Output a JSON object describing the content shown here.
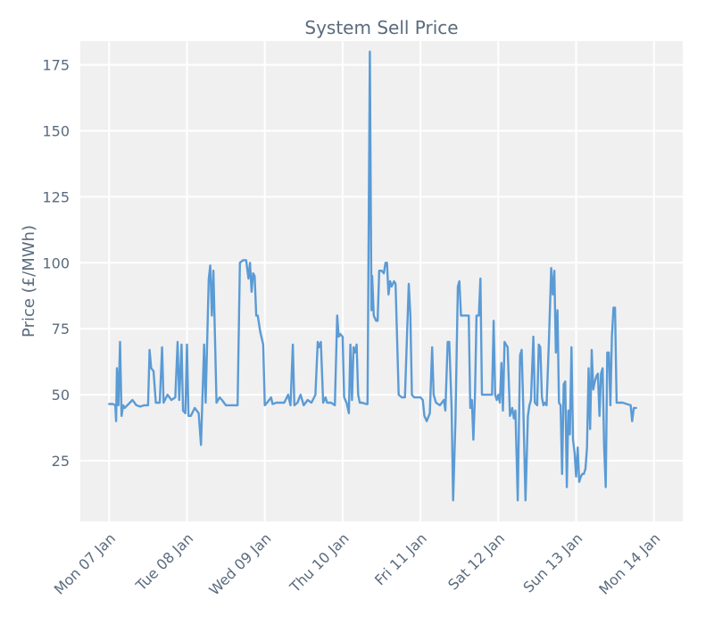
{
  "chart_data": {
    "type": "line",
    "title": "System Sell Price",
    "xlabel": "",
    "ylabel": "Price (£/MWh)",
    "x_ticks": [
      "Mon 07 Jan",
      "Tue 08 Jan",
      "Wed 09 Jan",
      "Thu 10 Jan",
      "Fri 11 Jan",
      "Sat 12 Jan",
      "Sun 13 Jan",
      "Mon 14 Jan"
    ],
    "y_ticks": [
      25,
      50,
      75,
      100,
      125,
      150,
      175
    ],
    "xlim_days": [
      -0.37,
      7.37
    ],
    "ylim": [
      2,
      184
    ],
    "grid": true,
    "colors": {
      "line": "#5b9bd5",
      "plot_bg": "#f0f0f0",
      "grid": "#ffffff",
      "text": "#5a6b7e"
    },
    "series": [
      {
        "name": "System Sell Price",
        "points": [
          [
            0.0,
            46.5
          ],
          [
            0.05,
            46.5
          ],
          [
            0.08,
            46
          ],
          [
            0.09,
            40
          ],
          [
            0.1,
            60
          ],
          [
            0.12,
            46
          ],
          [
            0.14,
            70
          ],
          [
            0.16,
            42
          ],
          [
            0.18,
            46
          ],
          [
            0.2,
            45
          ],
          [
            0.25,
            46.5
          ],
          [
            0.3,
            48
          ],
          [
            0.35,
            46
          ],
          [
            0.4,
            45.5
          ],
          [
            0.45,
            46
          ],
          [
            0.5,
            46
          ],
          [
            0.52,
            67
          ],
          [
            0.54,
            60
          ],
          [
            0.57,
            59
          ],
          [
            0.6,
            47
          ],
          [
            0.65,
            47
          ],
          [
            0.68,
            68
          ],
          [
            0.7,
            47
          ],
          [
            0.75,
            50
          ],
          [
            0.8,
            48
          ],
          [
            0.85,
            49
          ],
          [
            0.88,
            70
          ],
          [
            0.9,
            48
          ],
          [
            0.93,
            69
          ],
          [
            0.95,
            44
          ],
          [
            0.98,
            43
          ],
          [
            1.0,
            69
          ],
          [
            1.02,
            42
          ],
          [
            1.05,
            42
          ],
          [
            1.1,
            45
          ],
          [
            1.15,
            43
          ],
          [
            1.18,
            31
          ],
          [
            1.22,
            69
          ],
          [
            1.24,
            47
          ],
          [
            1.28,
            94
          ],
          [
            1.3,
            99
          ],
          [
            1.32,
            80
          ],
          [
            1.34,
            97
          ],
          [
            1.38,
            47
          ],
          [
            1.42,
            49
          ],
          [
            1.45,
            48
          ],
          [
            1.5,
            46
          ],
          [
            1.55,
            46
          ],
          [
            1.6,
            46
          ],
          [
            1.65,
            46
          ],
          [
            1.68,
            100
          ],
          [
            1.72,
            101
          ],
          [
            1.76,
            101
          ],
          [
            1.79,
            94
          ],
          [
            1.81,
            100
          ],
          [
            1.83,
            89
          ],
          [
            1.85,
            96
          ],
          [
            1.87,
            95
          ],
          [
            1.89,
            80
          ],
          [
            1.91,
            80
          ],
          [
            1.94,
            74
          ],
          [
            1.98,
            69
          ],
          [
            2.0,
            46
          ],
          [
            2.03,
            47
          ],
          [
            2.08,
            49
          ],
          [
            2.1,
            46.5
          ],
          [
            2.15,
            47
          ],
          [
            2.2,
            47
          ],
          [
            2.25,
            47
          ],
          [
            2.3,
            50
          ],
          [
            2.33,
            46
          ],
          [
            2.36,
            69
          ],
          [
            2.38,
            46
          ],
          [
            2.42,
            47
          ],
          [
            2.46,
            50
          ],
          [
            2.5,
            46
          ],
          [
            2.55,
            48
          ],
          [
            2.6,
            47
          ],
          [
            2.65,
            50
          ],
          [
            2.68,
            70
          ],
          [
            2.7,
            68
          ],
          [
            2.72,
            70
          ],
          [
            2.75,
            47
          ],
          [
            2.78,
            49
          ],
          [
            2.8,
            47
          ],
          [
            2.85,
            47
          ],
          [
            2.9,
            46
          ],
          [
            2.93,
            80
          ],
          [
            2.95,
            72
          ],
          [
            2.97,
            73
          ],
          [
            3.0,
            72
          ],
          [
            3.02,
            49
          ],
          [
            3.05,
            47
          ],
          [
            3.08,
            43
          ],
          [
            3.1,
            69
          ],
          [
            3.12,
            48
          ],
          [
            3.14,
            68
          ],
          [
            3.16,
            66
          ],
          [
            3.18,
            69
          ],
          [
            3.2,
            50
          ],
          [
            3.22,
            47
          ],
          [
            3.25,
            47
          ],
          [
            3.3,
            46.5
          ],
          [
            3.32,
            46.5
          ],
          [
            3.35,
            180
          ],
          [
            3.37,
            82
          ],
          [
            3.38,
            95
          ],
          [
            3.4,
            80
          ],
          [
            3.43,
            78
          ],
          [
            3.45,
            78
          ],
          [
            3.47,
            97
          ],
          [
            3.5,
            97
          ],
          [
            3.53,
            96
          ],
          [
            3.55,
            100
          ],
          [
            3.57,
            100
          ],
          [
            3.59,
            88
          ],
          [
            3.61,
            93
          ],
          [
            3.63,
            91
          ],
          [
            3.66,
            93
          ],
          [
            3.68,
            92
          ],
          [
            3.72,
            50
          ],
          [
            3.76,
            49
          ],
          [
            3.8,
            49
          ],
          [
            3.83,
            75
          ],
          [
            3.85,
            92
          ],
          [
            3.87,
            80
          ],
          [
            3.89,
            50
          ],
          [
            3.92,
            49
          ],
          [
            3.96,
            49
          ],
          [
            4.0,
            49
          ],
          [
            4.03,
            48
          ],
          [
            4.05,
            42
          ],
          [
            4.08,
            40
          ],
          [
            4.12,
            43
          ],
          [
            4.15,
            68
          ],
          [
            4.17,
            50
          ],
          [
            4.2,
            47
          ],
          [
            4.25,
            46
          ],
          [
            4.3,
            48
          ],
          [
            4.32,
            44
          ],
          [
            4.35,
            70
          ],
          [
            4.37,
            70
          ],
          [
            4.4,
            45
          ],
          [
            4.42,
            10
          ],
          [
            4.45,
            40
          ],
          [
            4.48,
            91
          ],
          [
            4.5,
            93
          ],
          [
            4.52,
            80
          ],
          [
            4.55,
            80
          ],
          [
            4.6,
            80
          ],
          [
            4.62,
            80
          ],
          [
            4.64,
            45
          ],
          [
            4.66,
            48
          ],
          [
            4.68,
            33
          ],
          [
            4.7,
            50
          ],
          [
            4.72,
            80
          ],
          [
            4.75,
            80
          ],
          [
            4.77,
            94
          ],
          [
            4.79,
            50
          ],
          [
            4.82,
            50
          ],
          [
            4.85,
            50
          ],
          [
            4.88,
            50
          ],
          [
            4.92,
            50
          ],
          [
            4.94,
            78
          ],
          [
            4.96,
            50
          ],
          [
            4.98,
            48
          ],
          [
            5.0,
            50
          ],
          [
            5.02,
            47
          ],
          [
            5.04,
            62
          ],
          [
            5.06,
            44
          ],
          [
            5.08,
            70
          ],
          [
            5.1,
            69
          ],
          [
            5.12,
            68
          ],
          [
            5.15,
            42
          ],
          [
            5.18,
            45
          ],
          [
            5.2,
            41
          ],
          [
            5.22,
            44
          ],
          [
            5.25,
            10
          ],
          [
            5.28,
            65
          ],
          [
            5.3,
            67
          ],
          [
            5.32,
            47
          ],
          [
            5.35,
            10
          ],
          [
            5.38,
            42
          ],
          [
            5.4,
            46
          ],
          [
            5.42,
            48
          ],
          [
            5.45,
            72
          ],
          [
            5.47,
            47
          ],
          [
            5.5,
            46
          ],
          [
            5.52,
            69
          ],
          [
            5.54,
            68
          ],
          [
            5.56,
            49
          ],
          [
            5.58,
            46
          ],
          [
            5.6,
            47
          ],
          [
            5.62,
            46
          ],
          [
            5.65,
            70
          ],
          [
            5.68,
            98
          ],
          [
            5.7,
            88
          ],
          [
            5.72,
            97
          ],
          [
            5.74,
            66
          ],
          [
            5.76,
            82
          ],
          [
            5.78,
            47
          ],
          [
            5.8,
            46
          ],
          [
            5.82,
            20
          ],
          [
            5.84,
            54
          ],
          [
            5.86,
            55
          ],
          [
            5.88,
            15
          ],
          [
            5.9,
            44
          ],
          [
            5.92,
            35
          ],
          [
            5.94,
            68
          ],
          [
            5.96,
            33
          ],
          [
            5.98,
            28
          ],
          [
            6.0,
            19
          ],
          [
            6.02,
            30
          ],
          [
            6.04,
            17
          ],
          [
            6.06,
            19
          ],
          [
            6.08,
            20
          ],
          [
            6.1,
            20
          ],
          [
            6.12,
            22
          ],
          [
            6.14,
            30
          ],
          [
            6.16,
            60
          ],
          [
            6.18,
            37
          ],
          [
            6.2,
            67
          ],
          [
            6.22,
            52
          ],
          [
            6.24,
            55
          ],
          [
            6.26,
            57
          ],
          [
            6.28,
            58
          ],
          [
            6.3,
            42
          ],
          [
            6.32,
            58
          ],
          [
            6.34,
            60
          ],
          [
            6.36,
            30
          ],
          [
            6.38,
            15
          ],
          [
            6.4,
            66
          ],
          [
            6.42,
            66
          ],
          [
            6.44,
            46
          ],
          [
            6.46,
            72
          ],
          [
            6.48,
            83
          ],
          [
            6.5,
            83
          ],
          [
            6.52,
            47
          ],
          [
            6.55,
            47
          ],
          [
            6.6,
            47
          ],
          [
            6.65,
            46.5
          ],
          [
            6.7,
            46
          ],
          [
            6.72,
            40
          ],
          [
            6.74,
            45
          ],
          [
            6.77,
            45
          ]
        ]
      }
    ]
  }
}
